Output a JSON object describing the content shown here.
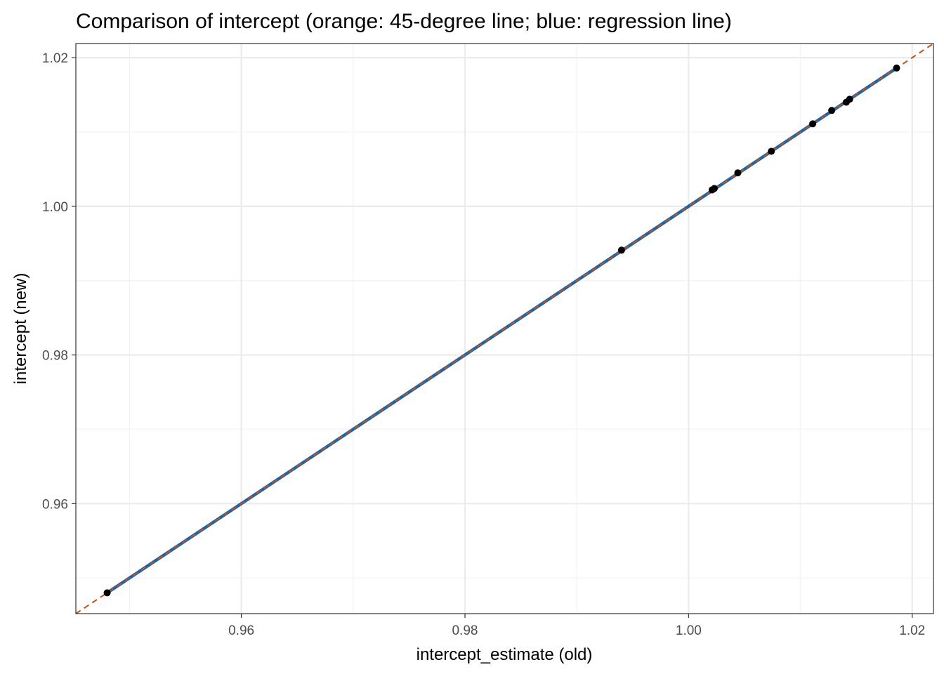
{
  "chart_data": {
    "type": "scatter",
    "title": "Comparison of intercept (orange: 45-degree line; blue: regression line)",
    "xlabel": "intercept_estimate (old)",
    "ylabel": "intercept (new)",
    "xlim": [
      0.9452,
      1.0219
    ],
    "ylim": [
      0.9452,
      1.0219
    ],
    "x_ticks": [
      0.96,
      0.98,
      1.0,
      1.02
    ],
    "x_tick_labels": [
      "0.96",
      "0.98",
      "1.00",
      "1.02"
    ],
    "y_ticks": [
      0.96,
      0.98,
      1.0,
      1.02
    ],
    "y_tick_labels": [
      "0.96",
      "0.98",
      "1.00",
      "1.02"
    ],
    "x_minor_ticks": [
      0.95,
      0.97,
      0.99,
      1.01
    ],
    "y_minor_ticks": [
      0.95,
      0.97,
      0.99,
      1.01
    ],
    "grid": true,
    "points": [
      {
        "x": 0.948,
        "y": 0.948
      },
      {
        "x": 0.994,
        "y": 0.9941
      },
      {
        "x": 1.0021,
        "y": 1.0022
      },
      {
        "x": 1.0023,
        "y": 1.0024
      },
      {
        "x": 1.0044,
        "y": 1.0045
      },
      {
        "x": 1.0074,
        "y": 1.0074
      },
      {
        "x": 1.0111,
        "y": 1.0111
      },
      {
        "x": 1.0128,
        "y": 1.0129
      },
      {
        "x": 1.0141,
        "y": 1.014
      },
      {
        "x": 1.0144,
        "y": 1.0144
      },
      {
        "x": 1.0186,
        "y": 1.0186
      }
    ],
    "reference_line": {
      "name": "45-degree line",
      "slope": 1,
      "intercept": 0,
      "style": "dashed",
      "color": "#c4501b"
    },
    "regression_line": {
      "name": "regression line",
      "x_range": [
        0.948,
        1.0186
      ],
      "slope": 1.0,
      "intercept": 0.0,
      "color": "#1f65a6"
    },
    "colors": {
      "points": "#000000",
      "panel_border": "#333333",
      "grid_major": "#ebebeb",
      "grid_minor": "#f3f3f3"
    }
  }
}
